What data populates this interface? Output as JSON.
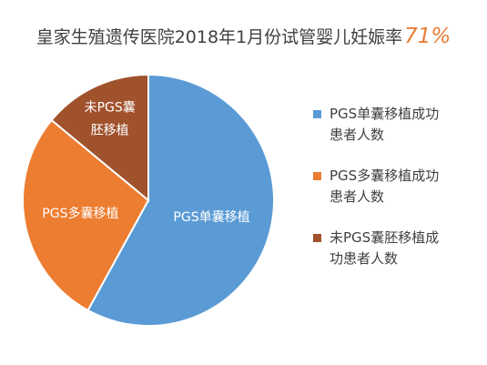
{
  "chart_data": {
    "type": "pie",
    "title": "皇家生殖遗传医院2018年1月份试管婴儿妊娠率",
    "title_highlight": "71%",
    "slices": [
      {
        "label": "PGS单囊移植",
        "legend": "PGS单囊移植成功患者人数",
        "value": 58,
        "color": "#5b9bd5"
      },
      {
        "label": "PGS多囊移植",
        "legend": "PGS多囊移植成功患者人数",
        "value": 28,
        "color": "#ed7d31"
      },
      {
        "label": "未PGS囊胚移植",
        "legend": "未PGS囊胚移植成功患者人数",
        "value": 14,
        "color": "#a0522d"
      }
    ],
    "legend_position": "right"
  }
}
